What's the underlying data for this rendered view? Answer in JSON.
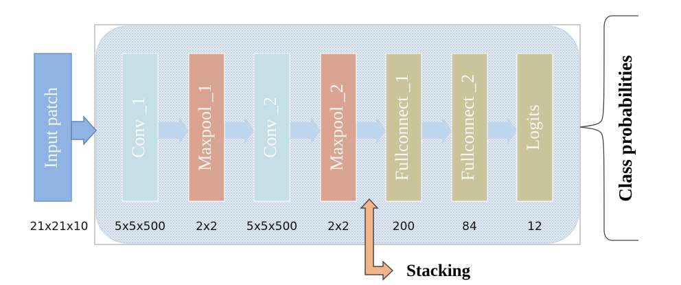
{
  "input": {
    "label": "Input patch",
    "size": "21x21x10"
  },
  "layers": [
    {
      "name": "Conv _1",
      "size": "5x5x500",
      "kind": "conv"
    },
    {
      "name": "Maxpool _1",
      "size": "2x2",
      "kind": "pool"
    },
    {
      "name": "Conv _2",
      "size": "5x5x500",
      "kind": "conv"
    },
    {
      "name": "Maxpool _2",
      "size": "2x2",
      "kind": "pool"
    },
    {
      "name": "Fullconnect _1",
      "size": "200",
      "kind": "fc"
    },
    {
      "name": "Fullconnect _2",
      "size": "84",
      "kind": "fc"
    },
    {
      "name": "Logits",
      "size": "12",
      "kind": "fc"
    }
  ],
  "output": {
    "label": "Class probabilities"
  },
  "stacking": {
    "label": "Stacking"
  },
  "colors": {
    "input": "#8fb4e3",
    "conv": "#c5dfe6",
    "pool": "#d9a592",
    "fc": "#c9c49a",
    "panel": "#dde8f1",
    "flow_arrow": "#bcd5ec",
    "stacking_arrow": "#f2b489"
  }
}
